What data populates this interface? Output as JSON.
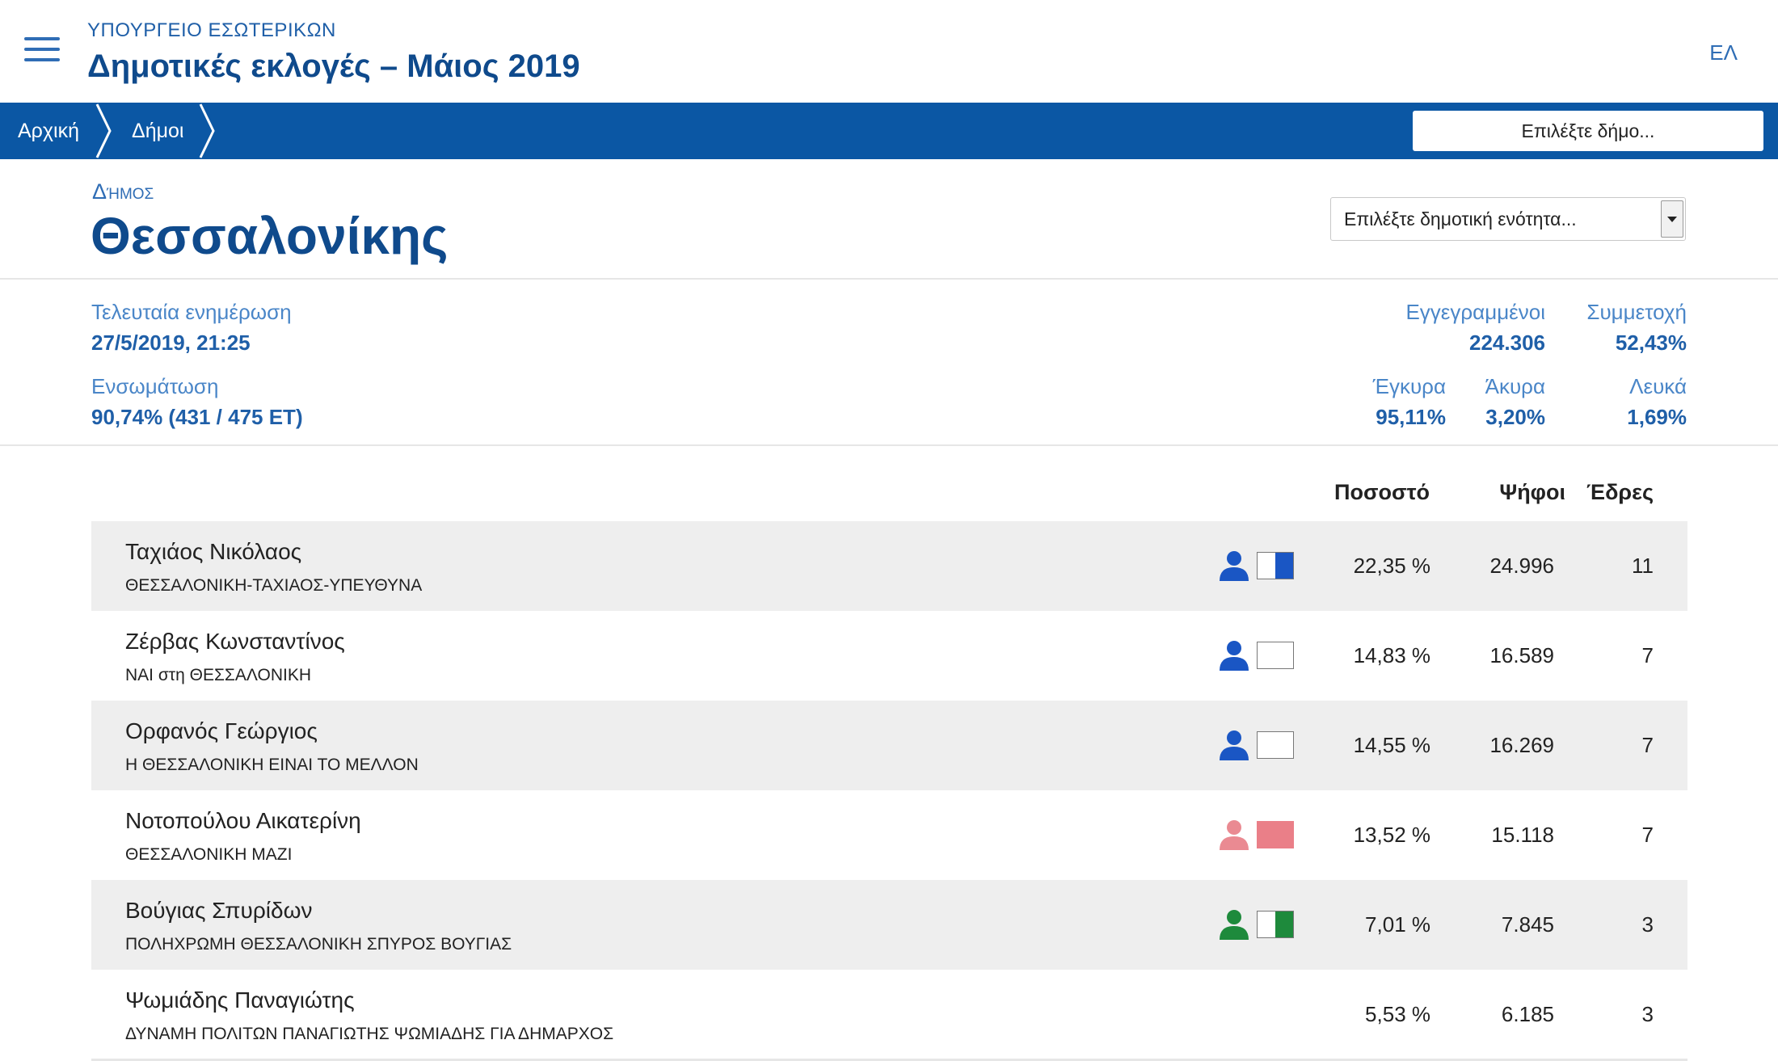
{
  "header": {
    "ministry": "ΥΠΟΥΡΓΕΙΟ ΕΣΩΤΕΡΙΚΩΝ",
    "title": "Δημοτικές εκλογές – Μάιος 2019",
    "language": "ΕΛ"
  },
  "nav": {
    "breadcrumbs": [
      "Αρχική",
      "Δήμοι"
    ],
    "municipality_select_placeholder": "Επιλέξτε δήμο..."
  },
  "municipality": {
    "label": "Δήμος",
    "name": "Θεσσαλονίκης",
    "unit_select_placeholder": "Επιλέξτε δημοτική ενότητα..."
  },
  "stats": {
    "last_update_label": "Τελευταία ενημέρωση",
    "last_update_value": "27/5/2019, 21:25",
    "incorporation_label": "Ενσωμάτωση",
    "incorporation_value": "90,74% (431 / 475 ΕΤ)",
    "registered_label": "Εγγεγραμμένοι",
    "registered_value": "224.306",
    "turnout_label": "Συμμετοχή",
    "turnout_value": "52,43%",
    "valid_label": "Έγκυρα",
    "valid_value": "95,11%",
    "invalid_label": "Άκυρα",
    "invalid_value": "3,20%",
    "blank_label": "Λευκά",
    "blank_value": "1,69%"
  },
  "table": {
    "headers": {
      "percent": "Ποσοστό",
      "votes": "Ψήφοι",
      "seats": "Έδρες"
    },
    "rows": [
      {
        "name": "Ταχιάος Νικόλαος",
        "party": "ΘΕΣΣΑΛΟΝΙΚΗ-ΤΑΧΙΑΟΣ-ΥΠΕΥΘΥΝΑ",
        "percent": "22,35 %",
        "votes": "24.996",
        "seats": "11",
        "person_color": "#1a56c4",
        "swatch_fill_color": "#1a56c4",
        "swatch_fill_fraction": 0.5,
        "icons": [
          "person-icon",
          "party-color-swatch"
        ]
      },
      {
        "name": "Ζέρβας Κωνσταντίνος",
        "party": "ΝΑΙ στη ΘΕΣΣΑΛΟΝΙΚΗ",
        "percent": "14,83 %",
        "votes": "16.589",
        "seats": "7",
        "person_color": "#1a56c4",
        "swatch_fill_color": "#ffffff",
        "swatch_fill_fraction": 0,
        "icons": [
          "person-icon",
          "party-color-swatch"
        ]
      },
      {
        "name": "Ορφανός Γεώργιος",
        "party": "Η ΘΕΣΣΑΛΟΝΙΚΗ ΕΙΝΑΙ ΤΟ ΜΕΛΛΟΝ",
        "percent": "14,55 %",
        "votes": "16.269",
        "seats": "7",
        "person_color": "#1a56c4",
        "swatch_fill_color": "#ffffff",
        "swatch_fill_fraction": 0,
        "icons": [
          "person-icon",
          "party-color-swatch"
        ]
      },
      {
        "name": "Νοτοπούλου Αικατερίνη",
        "party": "ΘΕΣΣΑΛΟΝΙΚΗ ΜΑΖΙ",
        "percent": "13,52 %",
        "votes": "15.118",
        "seats": "7",
        "person_color": "#ea8a92",
        "swatch_fill_color": "#ea7f88",
        "swatch_fill_fraction": 1,
        "icons": [
          "person-icon",
          "party-color-swatch"
        ]
      },
      {
        "name": "Βούγιας Σπυρίδων",
        "party": "ΠΟΛΗΧΡΩΜΗ ΘΕΣΣΑΛΟΝΙΚΗ ΣΠΥΡΟΣ ΒΟΥΓΙΑΣ",
        "percent": "7,01 %",
        "votes": "7.845",
        "seats": "3",
        "person_color": "#1e8a3c",
        "swatch_fill_color": "#1e8a3c",
        "swatch_fill_fraction": 0.5,
        "icons": [
          "person-icon",
          "party-color-swatch"
        ]
      },
      {
        "name": "Ψωμιάδης Παναγιώτης",
        "party": "ΔΥΝΑΜΗ ΠΟΛΙΤΩΝ ΠΑΝΑΓΙΩΤΗΣ ΨΩΜΙΑΔΗΣ ΓΙΑ ΔΗΜΑΡΧΟΣ",
        "percent": "5,53 %",
        "votes": "6.185",
        "seats": "3",
        "person_color": null,
        "swatch_fill_color": null,
        "swatch_fill_fraction": null,
        "icons": []
      }
    ]
  }
}
